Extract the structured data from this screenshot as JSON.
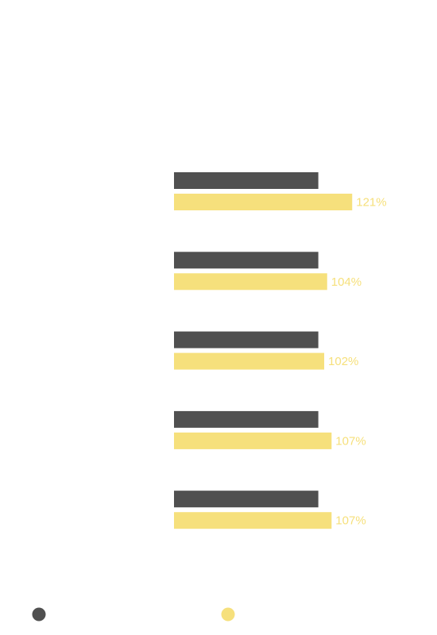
{
  "chart_data": {
    "type": "bar",
    "orientation": "horizontal",
    "categories": [
      null,
      null,
      null,
      null,
      null
    ],
    "xlim": [
      0,
      150
    ],
    "series": [
      {
        "color": "#505050",
        "values": [
          98,
          98,
          98,
          98,
          98
        ]
      },
      {
        "color": "#f6e07c",
        "values": [
          121,
          104,
          102,
          107,
          107
        ],
        "value_labels": [
          "121%",
          "104%",
          "102%",
          "107%",
          "107%"
        ]
      }
    ]
  }
}
